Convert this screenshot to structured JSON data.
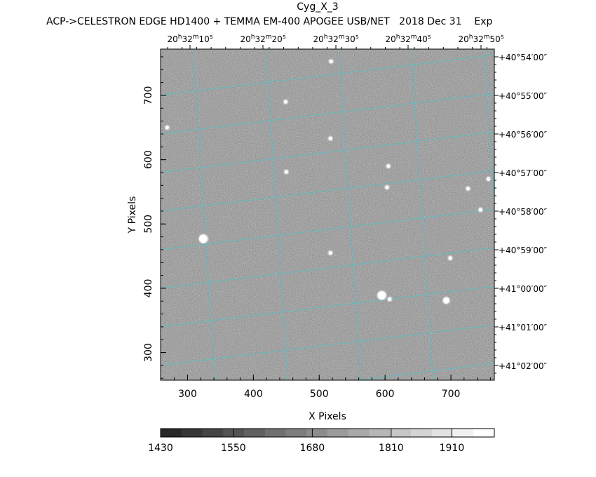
{
  "title": "Cyg_X_3",
  "subtitle": "ACP->CELESTRON EDGE HD1400 + TEMMA EM-400 APOGEE USB/NET   2018 Dec 31    Exp",
  "colors": {
    "grid": "#40c8d0",
    "background": "#ffffff",
    "axes": "#000000"
  },
  "chart_data": {
    "type": "image",
    "xlabel": "X Pixels",
    "ylabel": "Y Pixels",
    "xlim": [
      259,
      766
    ],
    "ylim": [
      257,
      772
    ],
    "x_ticks": [
      "300",
      "400",
      "500",
      "600",
      "700"
    ],
    "y_ticks": [
      "300",
      "400",
      "500",
      "600",
      "700"
    ],
    "ra_ticks": [
      {
        "h": "20",
        "m": "32",
        "s": "10"
      },
      {
        "h": "20",
        "m": "32",
        "s": "20"
      },
      {
        "h": "20",
        "m": "32",
        "s": "30"
      },
      {
        "h": "20",
        "m": "32",
        "s": "40"
      },
      {
        "h": "20",
        "m": "32",
        "s": "50"
      }
    ],
    "dec_ticks": [
      "+40°54′00″",
      "+40°55′00″",
      "+40°56′00″",
      "+40°57′00″",
      "+40°58′00″",
      "+40°59′00″",
      "+41°00′00″",
      "+41°01′00″",
      "+41°02′00″"
    ],
    "grid": true,
    "stars": [
      {
        "x": 324,
        "y": 477,
        "size": 3
      },
      {
        "x": 269,
        "y": 650,
        "size": 1
      },
      {
        "x": 449,
        "y": 690,
        "size": 1
      },
      {
        "x": 517,
        "y": 633,
        "size": 1
      },
      {
        "x": 450,
        "y": 581,
        "size": 1
      },
      {
        "x": 603,
        "y": 557,
        "size": 1
      },
      {
        "x": 595,
        "y": 389,
        "size": 3
      },
      {
        "x": 607,
        "y": 383,
        "size": 1
      },
      {
        "x": 693,
        "y": 381,
        "size": 2
      },
      {
        "x": 745,
        "y": 522,
        "size": 1
      },
      {
        "x": 699,
        "y": 447,
        "size": 1
      },
      {
        "x": 757,
        "y": 570,
        "size": 1
      },
      {
        "x": 726,
        "y": 555,
        "size": 1
      },
      {
        "x": 605,
        "y": 590,
        "size": 1
      },
      {
        "x": 518,
        "y": 753,
        "size": 1
      },
      {
        "x": 517,
        "y": 455,
        "size": 1
      }
    ],
    "colorbar": {
      "range": [
        1430,
        1980
      ],
      "ticks": [
        "1430",
        "1550",
        "1680",
        "1810",
        "1910"
      ],
      "levels": 16
    }
  }
}
